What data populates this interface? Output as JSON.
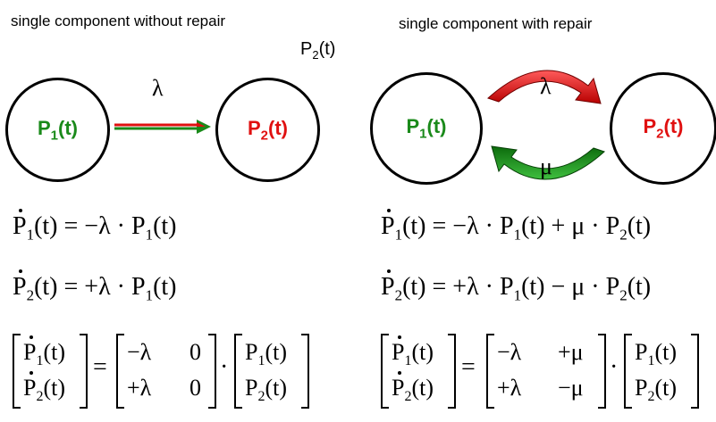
{
  "left": {
    "title": "single component without repair",
    "floating_label": "P",
    "floating_label_sub": "2",
    "floating_label_arg": "(t)",
    "state1": {
      "base": "P",
      "sub": "1",
      "arg": "(t)",
      "color": "#1a8a1a"
    },
    "state2": {
      "base": "P",
      "sub": "2",
      "arg": "(t)",
      "color": "#e01010"
    },
    "rate": "λ",
    "eq1": {
      "lhs": "P",
      "lhs_sub": "1",
      "rhs": "(t) = −λ · P",
      "rhs_sub": "1",
      "tail": "(t)"
    },
    "eq2": {
      "lhs": "P",
      "lhs_sub": "2",
      "rhs": "(t) = +λ · P",
      "rhs_sub": "1",
      "tail": "(t)"
    },
    "matrix": {
      "vec_left": [
        [
          "P",
          "1",
          "(t)"
        ],
        [
          "P",
          "2",
          "(t)"
        ]
      ],
      "coeff": [
        [
          "−λ",
          "0"
        ],
        [
          "+λ",
          "0"
        ]
      ],
      "vec_right": [
        [
          "P",
          "1",
          "(t)"
        ],
        [
          "P",
          "2",
          "(t)"
        ]
      ],
      "equals": "=",
      "dot": "·"
    }
  },
  "right": {
    "title": "single component with repair",
    "state1": {
      "base": "P",
      "sub": "1",
      "arg": "(t)",
      "color": "#1a8a1a"
    },
    "state2": {
      "base": "P",
      "sub": "2",
      "arg": "(t)",
      "color": "#e01010"
    },
    "rate_fail": "λ",
    "rate_repair": "μ",
    "eq1": {
      "lhs": "P",
      "lhs_sub": "1",
      "mid": "(t) = −λ · P",
      "mid_sub": "1",
      "mid2": "(t) + μ · P",
      "mid2_sub": "2",
      "tail": "(t)"
    },
    "eq2": {
      "lhs": "P",
      "lhs_sub": "2",
      "mid": "(t) = +λ · P",
      "mid_sub": "1",
      "mid2": "(t) − μ · P",
      "mid2_sub": "2",
      "tail": "(t)"
    },
    "matrix": {
      "vec_left": [
        [
          "P",
          "1",
          "(t)"
        ],
        [
          "P",
          "2",
          "(t)"
        ]
      ],
      "coeff": [
        [
          "−λ",
          "+μ"
        ],
        [
          "+λ",
          "−μ"
        ]
      ],
      "vec_right": [
        [
          "P",
          "1",
          "(t)"
        ],
        [
          "P",
          "2",
          "(t)"
        ]
      ],
      "equals": "=",
      "dot": "·"
    }
  }
}
